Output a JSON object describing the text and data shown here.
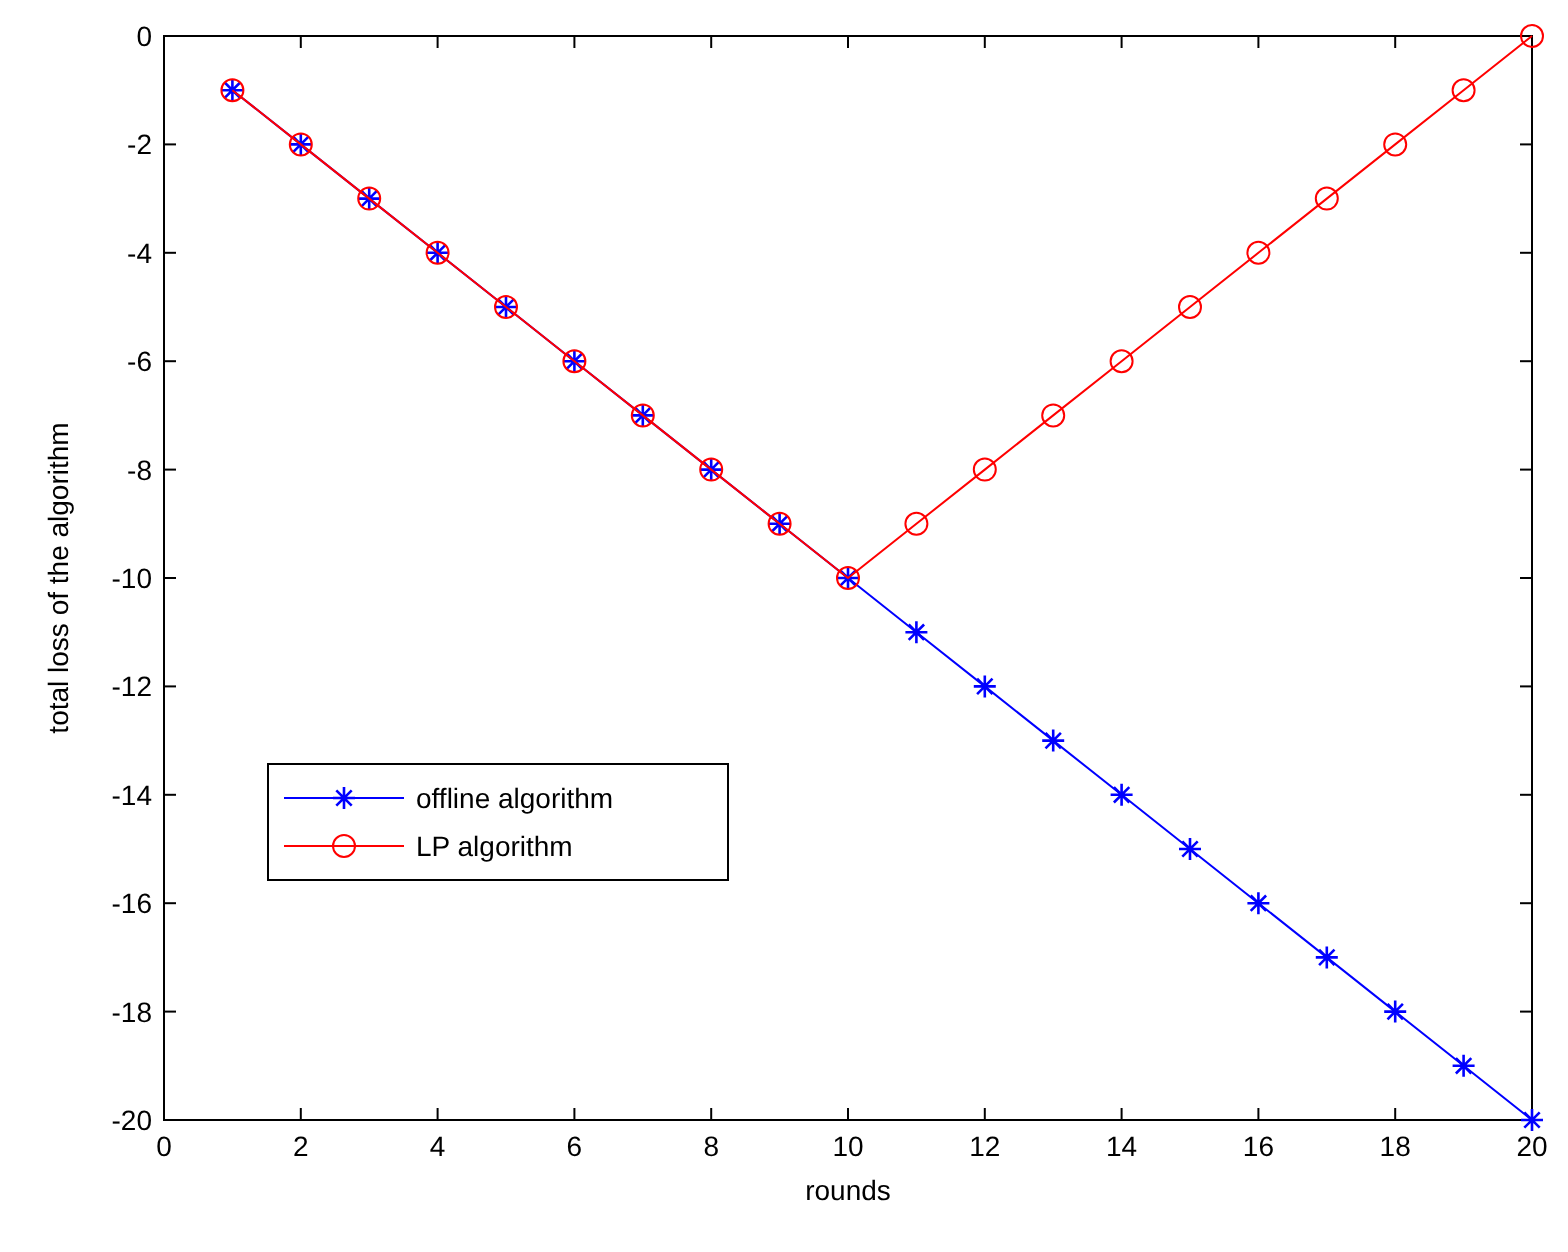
{
  "chart_data": {
    "type": "line",
    "xlabel": "rounds",
    "ylabel": "total loss of the algorithm",
    "x": [
      1,
      2,
      3,
      4,
      5,
      6,
      7,
      8,
      9,
      10,
      11,
      12,
      13,
      14,
      15,
      16,
      17,
      18,
      19,
      20
    ],
    "xlim": [
      0,
      20
    ],
    "xticks": [
      0,
      2,
      4,
      6,
      8,
      10,
      12,
      14,
      16,
      18,
      20
    ],
    "ylim": [
      -20,
      0
    ],
    "yticks": [
      -20,
      -18,
      -16,
      -14,
      -12,
      -10,
      -8,
      -6,
      -4,
      -2,
      0
    ],
    "grid": false,
    "legend": "bottom left",
    "line_style": "solid",
    "series": [
      {
        "name": "offline algorithm",
        "color": "#0000ff",
        "marker": "cross",
        "values": [
          -1,
          -2,
          -3,
          -4,
          -5,
          -6,
          -7,
          -8,
          -9,
          -10,
          -11,
          -12,
          -13,
          -14,
          -15,
          -16,
          -17,
          -18,
          -19,
          -20
        ]
      },
      {
        "name": "LP algorithm",
        "color": "#ff0000",
        "marker": "circle",
        "values": [
          -1,
          -2,
          -3,
          -4,
          -5,
          -6,
          -7,
          -8,
          -9,
          -10,
          -9,
          -8,
          -7,
          -6,
          -5,
          -4,
          -3,
          -2,
          -1,
          0
        ]
      }
    ]
  }
}
